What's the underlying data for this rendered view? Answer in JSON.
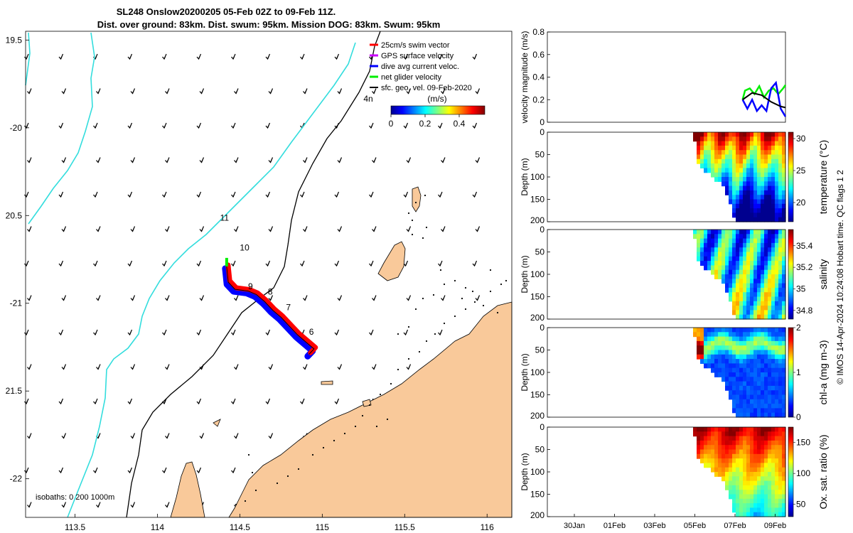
{
  "figure": {
    "title_line1": "SL248 Onslow20200205 05-Feb 02Z to 09-Feb 11Z.",
    "title_line2": "Dist. over ground: 83km. Dist. swum: 95km. Mission DOG: 83km. Swum: 95km",
    "credit": "© IMOS 14-Apr-2024 10:24:08 Hobart time. QC flags 1  2"
  },
  "colors": {
    "land": "#f9c99a",
    "isobath_200": "#000000",
    "isobath_1000": "#33dddd",
    "swim_vector": "#ff0000",
    "gps_velocity": "#cc00ff",
    "dive_avg_current": "#0000ff",
    "net_glider": "#00ee00",
    "sfc_geo": "#000000"
  },
  "chart_data": [
    {
      "type": "scatter",
      "id": "map",
      "xlim": [
        113.2,
        116.15
      ],
      "ylim": [
        -22.22,
        -19.45
      ],
      "xticks": [
        113.5,
        114,
        114.5,
        115,
        115.5,
        116
      ],
      "xtick_labels": [
        "113.5",
        "114",
        "114.5",
        "115",
        "115.5",
        "116"
      ],
      "yticks": [
        -19.5,
        -20,
        -20.5,
        -21,
        -21.5,
        -22
      ],
      "ytick_labels": [
        "19.5",
        "-20",
        "20.5",
        "-21",
        "21.5",
        "-22"
      ],
      "isobath_label": "isobaths: 0    200  1000m",
      "legend": [
        {
          "key": "swim_vector",
          "label": "25cm/s swim vector"
        },
        {
          "key": "gps_velocity",
          "label": "GPS surface velocity"
        },
        {
          "key": "dive_avg_current",
          "label": "dive avg current veloc."
        },
        {
          "key": "net_glider",
          "label": "net glider velocity"
        },
        {
          "key": "sfc_geo",
          "label": "sfc. geo. vel. 09-Feb-2020"
        }
      ],
      "colorbar_title": "(m/s)",
      "colorbar_ticks": [
        "0",
        "0.2",
        "0.4"
      ],
      "colorbar_range": [
        0,
        0.55
      ],
      "track": [
        [
          114.42,
          -20.79
        ],
        [
          114.43,
          -20.88
        ],
        [
          114.47,
          -20.92
        ],
        [
          114.55,
          -20.93
        ],
        [
          114.6,
          -20.95
        ],
        [
          114.65,
          -20.99
        ],
        [
          114.7,
          -21.04
        ],
        [
          114.75,
          -21.08
        ],
        [
          114.8,
          -21.13
        ],
        [
          114.85,
          -21.18
        ],
        [
          114.9,
          -21.22
        ],
        [
          114.95,
          -21.26
        ],
        [
          114.92,
          -21.29
        ]
      ],
      "day_labels": [
        {
          "text": "4n",
          "x": 115.25,
          "y": -19.85
        },
        {
          "text": "11",
          "x": 114.38,
          "y": -20.53
        },
        {
          "text": "10",
          "x": 114.5,
          "y": -20.7
        },
        {
          "text": "9",
          "x": 114.55,
          "y": -20.92
        },
        {
          "text": "8",
          "x": 114.67,
          "y": -20.95
        },
        {
          "text": "7",
          "x": 114.78,
          "y": -21.04
        },
        {
          "text": "6",
          "x": 114.92,
          "y": -21.18
        }
      ]
    },
    {
      "type": "line",
      "id": "velocity",
      "ylabel": "velocity magnitude (m/s)",
      "ylim": [
        0,
        0.8
      ],
      "yticks": [
        "0",
        "0.2",
        "0.4",
        "0.6",
        "0.8"
      ],
      "xlim": [
        0,
        1
      ],
      "series": [
        {
          "key": "net_glider",
          "x": [
            0.82,
            0.83,
            0.85,
            0.87,
            0.89,
            0.91,
            0.93,
            0.95,
            0.97,
            0.99,
            1.0
          ],
          "values": [
            0.2,
            0.28,
            0.3,
            0.25,
            0.32,
            0.22,
            0.28,
            0.3,
            0.25,
            0.3,
            0.33
          ]
        },
        {
          "key": "dive_avg_current",
          "x": [
            0.82,
            0.84,
            0.86,
            0.88,
            0.9,
            0.92,
            0.94,
            0.96,
            0.98,
            1.0
          ],
          "values": [
            0.2,
            0.12,
            0.2,
            0.1,
            0.15,
            0.1,
            0.3,
            0.35,
            0.12,
            0.05
          ]
        },
        {
          "key": "sfc_geo",
          "x": [
            0.82,
            0.86,
            0.9,
            0.94,
            0.98,
            1.0
          ],
          "values": [
            0.2,
            0.26,
            0.24,
            0.18,
            0.14,
            0.13
          ]
        }
      ]
    },
    {
      "type": "heatmap",
      "id": "temperature",
      "ylabel": "Depth (m)",
      "cblabel": "temperature (°C)",
      "yticks": [
        "0",
        "50",
        "100",
        "150",
        "200"
      ],
      "cbticks": [
        "30",
        "25",
        "20"
      ],
      "cbrange": [
        17,
        31
      ]
    },
    {
      "type": "heatmap",
      "id": "salinity",
      "ylabel": "Depth (m)",
      "cblabel": "salinity",
      "yticks": [
        "0",
        "50",
        "100",
        "150",
        "200"
      ],
      "cbticks": [
        "35.4",
        "35.2",
        "35",
        "34.8"
      ],
      "cbrange": [
        34.72,
        35.55
      ]
    },
    {
      "type": "heatmap",
      "id": "chla",
      "ylabel": "Depth (m)",
      "cblabel": "chl-a (mg m-3)",
      "yticks": [
        "0",
        "50",
        "100",
        "150",
        "200"
      ],
      "cbticks": [
        "2",
        "1",
        "0"
      ],
      "cbrange": [
        0,
        2
      ]
    },
    {
      "type": "heatmap",
      "id": "oxygen",
      "ylabel": "Depth (m)",
      "cblabel": "Ox. sat. ratio (%)",
      "yticks": [
        "0",
        "50",
        "100",
        "150",
        "200"
      ],
      "cbticks": [
        "150",
        "100",
        "50"
      ],
      "cbrange": [
        30,
        175
      ],
      "xtick_labels": [
        "30Jan",
        "01Feb",
        "03Feb",
        "05Feb",
        "07Feb",
        "09Feb"
      ]
    }
  ]
}
